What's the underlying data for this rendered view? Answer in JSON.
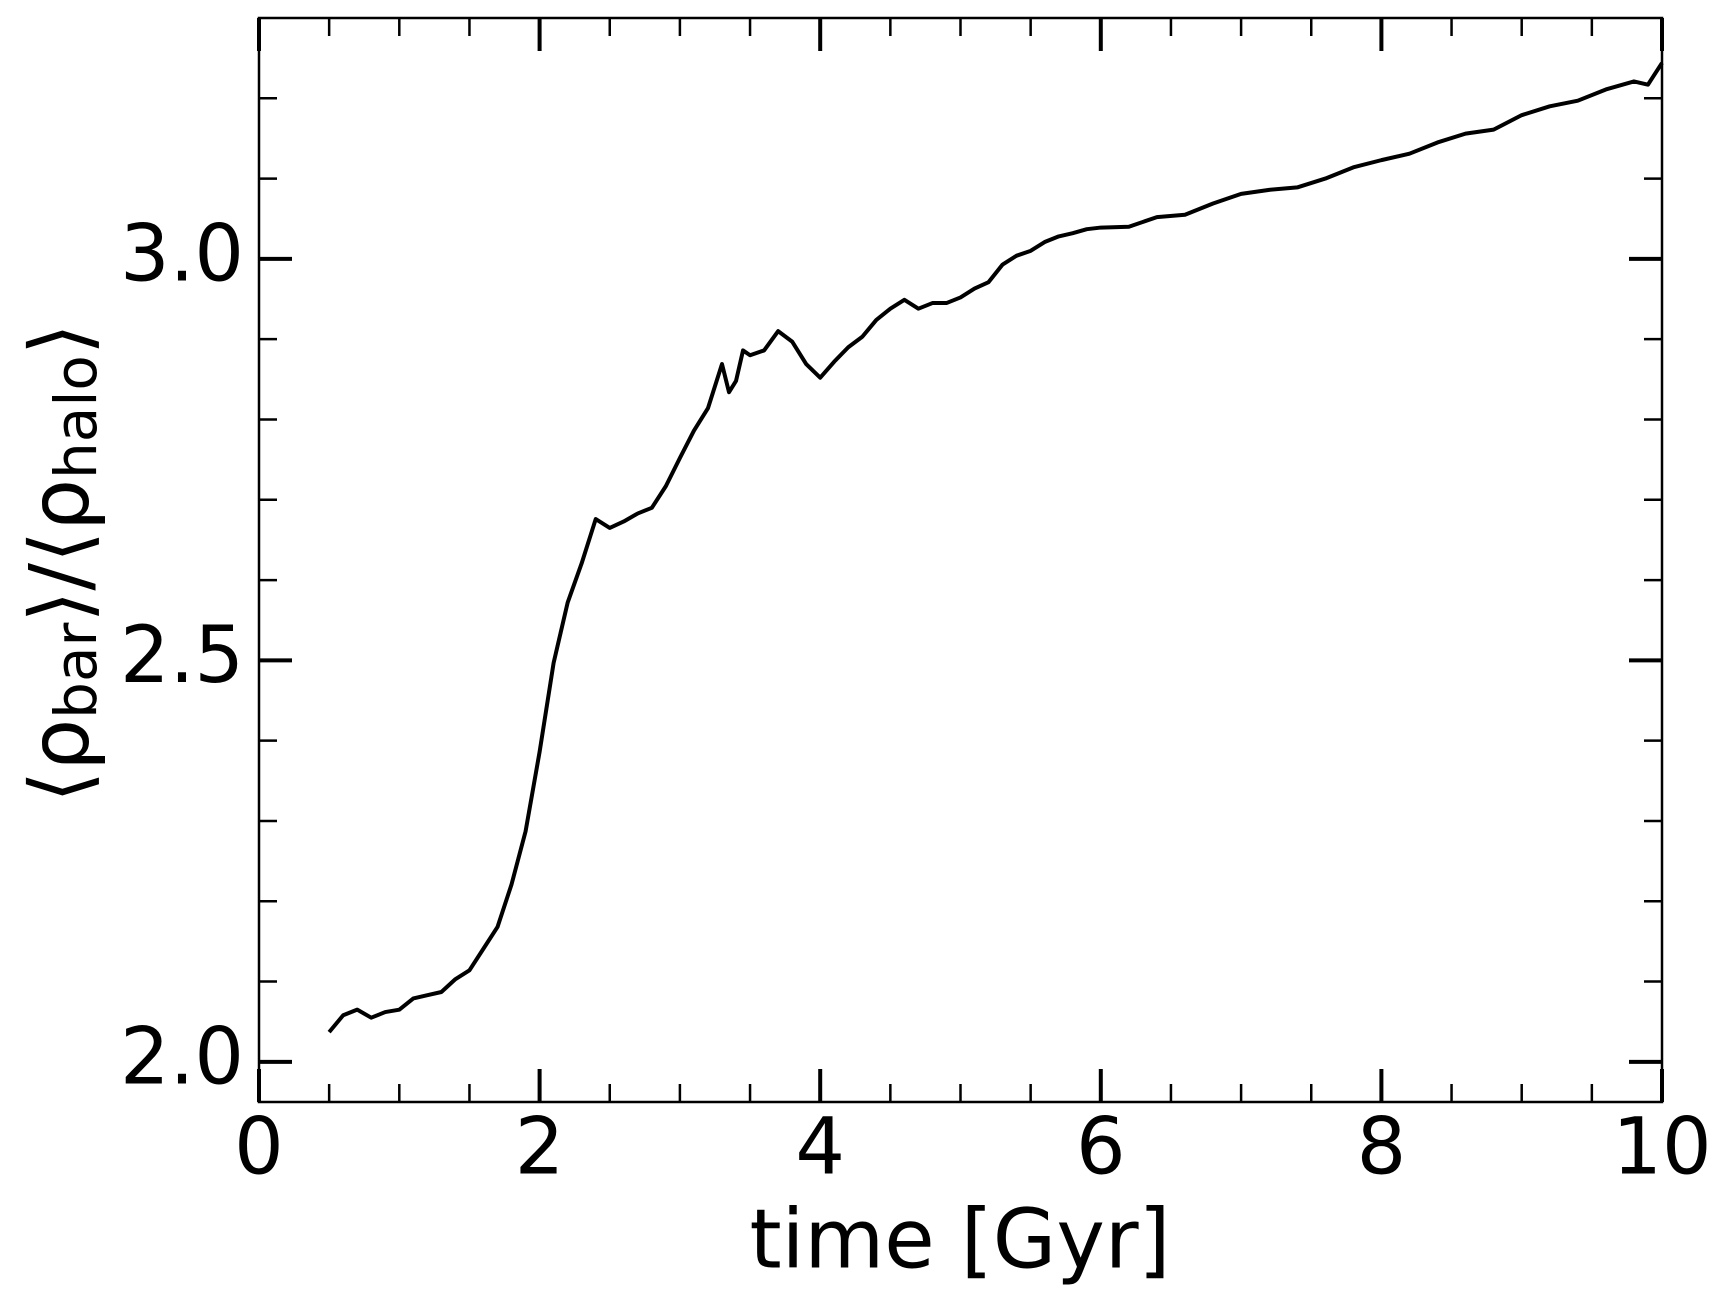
{
  "chart_data": {
    "type": "line",
    "xlabel": "time [Gyr]",
    "ylabel": [
      "⟨ρ",
      "bar",
      "⟩/⟨ρ",
      "halo",
      "⟩"
    ],
    "x": [
      0.5,
      0.6,
      0.7,
      0.8,
      0.9,
      1.0,
      1.1,
      1.2,
      1.3,
      1.4,
      1.5,
      1.6,
      1.7,
      1.8,
      1.9,
      2.0,
      2.1,
      2.2,
      2.3,
      2.4,
      2.5,
      2.6,
      2.7,
      2.8,
      2.9,
      3.0,
      3.1,
      3.2,
      3.3,
      3.35,
      3.4,
      3.45,
      3.5,
      3.6,
      3.7,
      3.8,
      3.9,
      4.0,
      4.1,
      4.2,
      4.3,
      4.4,
      4.5,
      4.6,
      4.7,
      4.8,
      4.9,
      5.0,
      5.1,
      5.2,
      5.3,
      5.4,
      5.5,
      5.6,
      5.7,
      5.8,
      5.9,
      6.0,
      6.2,
      6.4,
      6.6,
      6.8,
      7.0,
      7.2,
      7.4,
      7.6,
      7.8,
      8.0,
      8.2,
      8.4,
      8.6,
      8.8,
      9.0,
      9.2,
      9.4,
      9.6,
      9.8,
      9.9,
      10.0
    ],
    "series": [
      {
        "color": "#000000",
        "values": [
          2.037,
          2.058,
          2.065,
          2.055,
          2.062,
          2.065,
          2.079,
          2.083,
          2.087,
          2.103,
          2.114,
          2.141,
          2.168,
          2.221,
          2.287,
          2.386,
          2.497,
          2.572,
          2.621,
          2.676,
          2.665,
          2.673,
          2.683,
          2.69,
          2.717,
          2.752,
          2.786,
          2.814,
          2.869,
          2.834,
          2.848,
          2.886,
          2.88,
          2.886,
          2.91,
          2.897,
          2.869,
          2.852,
          2.872,
          2.89,
          2.903,
          2.924,
          2.938,
          2.949,
          2.938,
          2.945,
          2.945,
          2.952,
          2.963,
          2.971,
          2.993,
          3.004,
          3.01,
          3.021,
          3.028,
          3.032,
          3.037,
          3.039,
          3.04,
          3.052,
          3.055,
          3.069,
          3.081,
          3.086,
          3.089,
          3.1,
          3.114,
          3.123,
          3.131,
          3.145,
          3.156,
          3.161,
          3.179,
          3.19,
          3.197,
          3.211,
          3.221,
          3.217,
          3.244
        ]
      }
    ],
    "xlim": [
      0,
      10
    ],
    "ylim": [
      1.95,
      3.3
    ],
    "xticks": [
      0,
      2,
      4,
      6,
      8,
      10
    ],
    "yticks": [
      {
        "value": 2.0,
        "label": "2.0"
      },
      {
        "value": 2.5,
        "label": "2.5"
      },
      {
        "value": 3.0,
        "label": "3.0"
      }
    ],
    "xminorticks": [
      0.5,
      1,
      1.5,
      2.5,
      3,
      3.5,
      4.5,
      5,
      5.5,
      6.5,
      7,
      7.5,
      8.5,
      9,
      9.5
    ],
    "yminorticks": [
      2.1,
      2.2,
      2.3,
      2.4,
      2.6,
      2.7,
      2.8,
      2.9,
      3.1,
      3.2
    ]
  }
}
